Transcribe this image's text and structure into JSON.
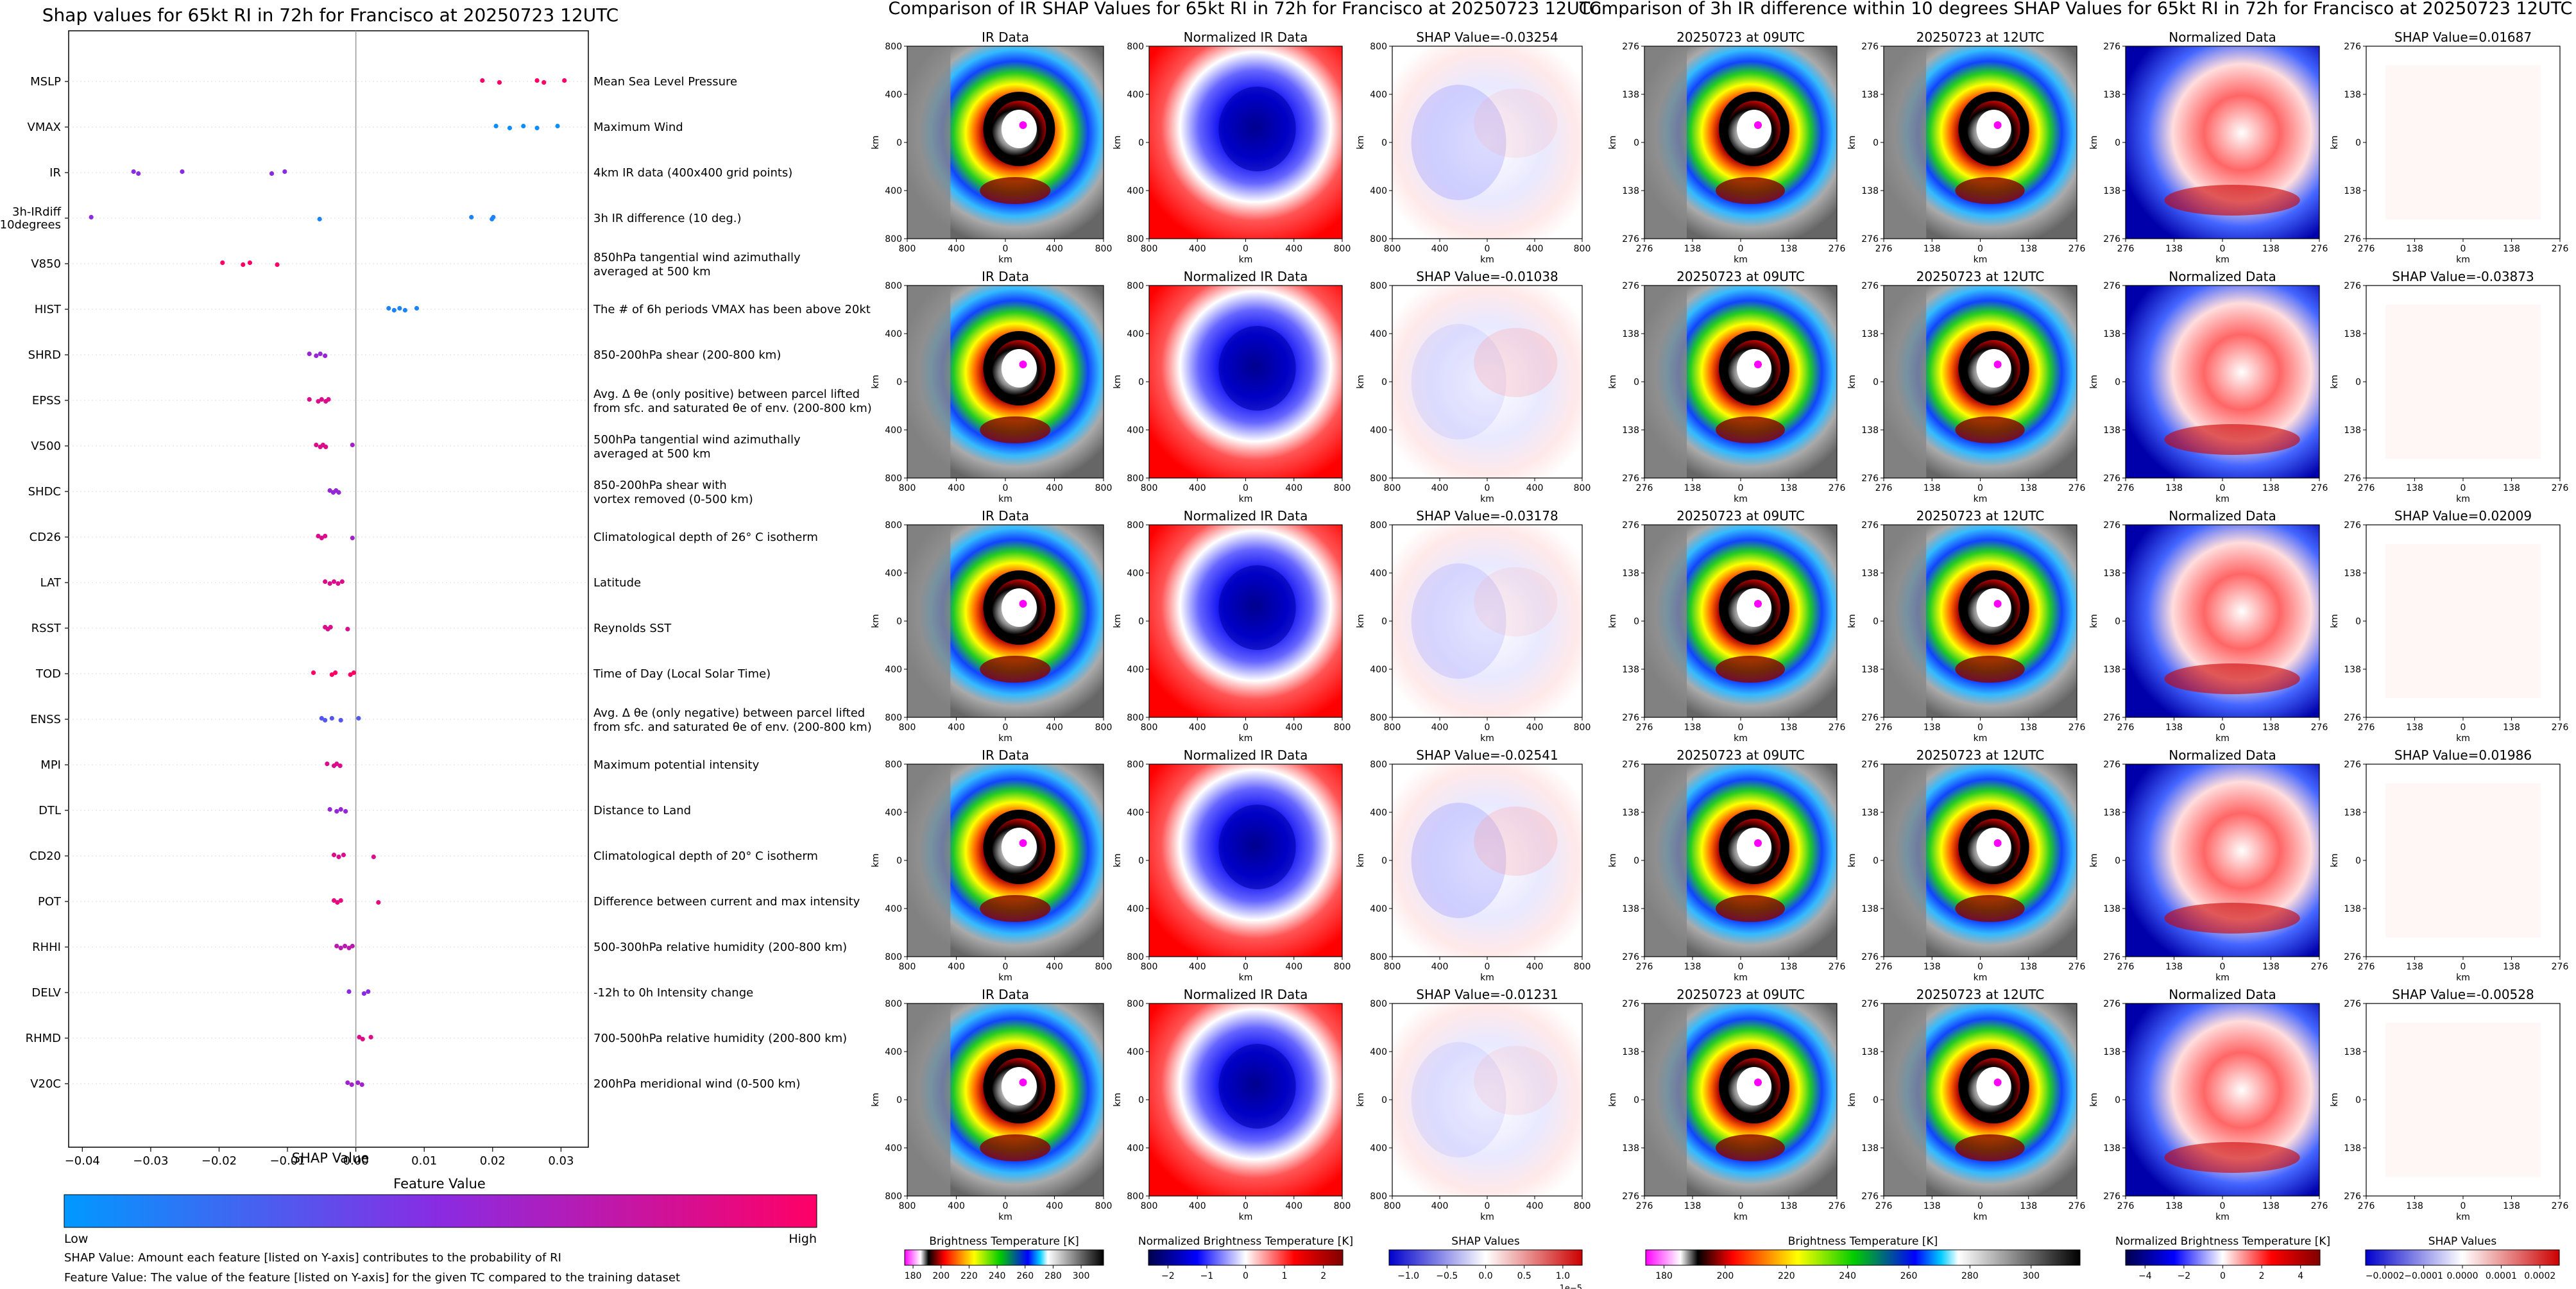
{
  "shap_panel": {
    "title": "Shap values for 65kt RI in 72h for Francisco at 20250723 12UTC",
    "xlabel": "SHAP Value",
    "colorbar_title": "Feature Value",
    "colorbar_low": "Low",
    "colorbar_high": "High",
    "footnote_1": "SHAP Value: Amount each feature [listed on Y-axis] contributes to the probability of RI",
    "footnote_2": "Feature Value: The value of the feature [listed on Y-axis] for the given TC compared to the training dataset"
  },
  "ir_panel": {
    "title": "Comparison of IR SHAP Values for 65kt RI in 72h for Francisco at 20250723 12UTC",
    "col_titles": [
      "IR Data",
      "Normalized IR Data"
    ],
    "shap_titles": [
      "SHAP Value=-0.03254",
      "SHAP Value=-0.01038",
      "SHAP Value=-0.03178",
      "SHAP Value=-0.02541",
      "SHAP Value=-0.01231"
    ],
    "axis_unit": "km",
    "ticks_x": [
      "800",
      "400",
      "0",
      "400",
      "800"
    ],
    "ticks_y": [
      "800",
      "400",
      "0",
      "400",
      "800"
    ],
    "cbar_1": {
      "label": "Brightness Temperature [K]",
      "ticks": [
        "180",
        "200",
        "220",
        "240",
        "260",
        "280",
        "300"
      ]
    },
    "cbar_2": {
      "label": "Normalized Brightness Temperature [K]",
      "ticks": [
        "−2",
        "−1",
        "0",
        "1",
        "2"
      ]
    },
    "cbar_3": {
      "label": "SHAP Values",
      "ticks": [
        "−1.0",
        "−0.5",
        "0.0",
        "0.5",
        "1.0"
      ],
      "exponent": "1e−5"
    }
  },
  "diff_panel": {
    "title": "Comparison of 3h IR difference within 10 degrees SHAP Values for 65kt RI in 72h for Francisco at 20250723 12UTC",
    "col_titles": [
      "20250723 at 09UTC",
      "20250723 at 12UTC",
      "Normalized Data"
    ],
    "shap_titles": [
      "SHAP Value=0.01687",
      "SHAP Value=-0.03873",
      "SHAP Value=0.02009",
      "SHAP Value=0.01986",
      "SHAP Value=-0.00528"
    ],
    "axis_unit": "km",
    "ticks_x": [
      "276",
      "138",
      "0",
      "138",
      "276"
    ],
    "ticks_y": [
      "276",
      "138",
      "0",
      "138",
      "276"
    ],
    "cbar_1": {
      "label": "Brightness Temperature [K]",
      "ticks": [
        "180",
        "200",
        "220",
        "240",
        "260",
        "280",
        "300"
      ]
    },
    "cbar_2": {
      "label": "Normalized Brightness Temperature [K]",
      "ticks": [
        "−4",
        "−2",
        "0",
        "2",
        "4"
      ]
    },
    "cbar_3": {
      "label": "SHAP Values",
      "ticks": [
        "−0.0002",
        "−0.0001",
        "0.0000",
        "0.0001",
        "0.0002"
      ]
    }
  },
  "colors": {
    "low": "#1e90ff",
    "mid": "#8a2be2",
    "high": "#ff0066",
    "zero_line": "#999999"
  },
  "chart_data": {
    "type": "scatter",
    "title": "Shap values for 65kt RI in 72h for Francisco at 20250723 12UTC",
    "xlabel": "SHAP Value",
    "xlim": [
      -0.042,
      0.034
    ],
    "xticks": [
      "−0.04",
      "−0.03",
      "−0.02",
      "−0.01",
      "0.00",
      "0.01",
      "0.02",
      "0.03"
    ],
    "xtick_values": [
      -0.04,
      -0.03,
      -0.02,
      -0.01,
      0.0,
      0.01,
      0.02,
      0.03
    ],
    "colorbar": {
      "label": "Feature Value",
      "low": "Low",
      "high": "High"
    },
    "features": [
      {
        "name": "MSLP",
        "desc": [
          "Mean Sea Level Pressure"
        ],
        "points": [
          [
            0.0185,
            1
          ],
          [
            0.021,
            1
          ],
          [
            0.0265,
            1
          ],
          [
            0.0275,
            1
          ],
          [
            0.0305,
            1
          ]
        ]
      },
      {
        "name": "VMAX",
        "desc": [
          "Maximum Wind"
        ],
        "points": [
          [
            0.0205,
            0.05
          ],
          [
            0.0225,
            0.05
          ],
          [
            0.0245,
            0.05
          ],
          [
            0.0265,
            0.05
          ],
          [
            0.0295,
            0.05
          ]
        ]
      },
      {
        "name": "IR",
        "desc": [
          "4km IR data (400x400 grid points)"
        ],
        "points": [
          [
            -0.0325,
            0.5
          ],
          [
            -0.0318,
            0.5
          ],
          [
            -0.0254,
            0.5
          ],
          [
            -0.0123,
            0.5
          ],
          [
            -0.0104,
            0.5
          ]
        ]
      },
      {
        "name": "3h-IRdiff 10degrees",
        "desc": [
          "3h IR difference (10 deg.)"
        ],
        "points": [
          [
            -0.0387,
            0.5
          ],
          [
            -0.0053,
            0.1
          ],
          [
            0.0169,
            0.1
          ],
          [
            0.0199,
            0.1
          ],
          [
            0.0201,
            0.1
          ]
        ]
      },
      {
        "name": "V850",
        "desc": [
          "850hPa tangential wind azimuthally",
          "averaged at 500 km"
        ],
        "points": [
          [
            -0.0195,
            1
          ],
          [
            -0.0165,
            1
          ],
          [
            -0.0155,
            1
          ],
          [
            -0.0115,
            1
          ]
        ]
      },
      {
        "name": "HIST",
        "desc": [
          "The # of 6h periods VMAX has been above 20kt"
        ],
        "points": [
          [
            0.0048,
            0.1
          ],
          [
            0.0056,
            0.1
          ],
          [
            0.0064,
            0.1
          ],
          [
            0.0072,
            0.1
          ],
          [
            0.0089,
            0.1
          ]
        ]
      },
      {
        "name": "SHRD",
        "desc": [
          "850-200hPa shear (200-800 km)"
        ],
        "points": [
          [
            -0.0068,
            0.55
          ],
          [
            -0.0058,
            0.55
          ],
          [
            -0.0052,
            0.55
          ],
          [
            -0.0045,
            0.55
          ]
        ]
      },
      {
        "name": "EPSS",
        "desc": [
          "Avg. Δ θe (only positive) between parcel lifted",
          "from sfc. and saturated θe of env. (200-800 km)"
        ],
        "points": [
          [
            -0.0068,
            0.85
          ],
          [
            -0.0055,
            0.85
          ],
          [
            -0.005,
            0.85
          ],
          [
            -0.0044,
            0.85
          ],
          [
            -0.004,
            0.85
          ]
        ]
      },
      {
        "name": "V500",
        "desc": [
          "500hPa tangential wind azimuthally",
          "averaged at 500 km"
        ],
        "points": [
          [
            -0.0058,
            0.85
          ],
          [
            -0.0052,
            0.85
          ],
          [
            -0.0048,
            0.85
          ],
          [
            -0.0044,
            0.85
          ],
          [
            -0.0005,
            0.6
          ]
        ]
      },
      {
        "name": "SHDC",
        "desc": [
          "850-200hPa shear with",
          "vortex removed (0-500 km)"
        ],
        "points": [
          [
            -0.0038,
            0.55
          ],
          [
            -0.0033,
            0.55
          ],
          [
            -0.0029,
            0.55
          ],
          [
            -0.0025,
            0.55
          ]
        ]
      },
      {
        "name": "CD26",
        "desc": [
          "Climatological depth of 26° C isotherm"
        ],
        "points": [
          [
            -0.0055,
            0.85
          ],
          [
            -0.005,
            0.85
          ],
          [
            -0.0045,
            0.85
          ],
          [
            -0.0005,
            0.6
          ]
        ]
      },
      {
        "name": "LAT",
        "desc": [
          "Latitude"
        ],
        "points": [
          [
            -0.0045,
            0.85
          ],
          [
            -0.0038,
            0.85
          ],
          [
            -0.0032,
            0.85
          ],
          [
            -0.0026,
            0.85
          ],
          [
            -0.002,
            0.85
          ]
        ]
      },
      {
        "name": "RSST",
        "desc": [
          "Reynolds SST"
        ],
        "points": [
          [
            -0.0045,
            0.85
          ],
          [
            -0.0041,
            0.85
          ],
          [
            -0.0037,
            0.85
          ],
          [
            -0.0012,
            0.85
          ]
        ]
      },
      {
        "name": "TOD",
        "desc": [
          "Time of Day (Local Solar Time)"
        ],
        "points": [
          [
            -0.0062,
            1
          ],
          [
            -0.0035,
            1
          ],
          [
            -0.003,
            1
          ],
          [
            -0.0008,
            1
          ],
          [
            -0.0003,
            1
          ]
        ]
      },
      {
        "name": "ENSS",
        "desc": [
          "Avg. Δ θe (only negative) between parcel lifted",
          "from sfc. and saturated θe of env. (200-800 km)"
        ],
        "points": [
          [
            -0.005,
            0.3
          ],
          [
            -0.0045,
            0.3
          ],
          [
            -0.0035,
            0.3
          ],
          [
            -0.0022,
            0.3
          ],
          [
            0.0004,
            0.3
          ]
        ]
      },
      {
        "name": "MPI",
        "desc": [
          "Maximum potential intensity"
        ],
        "points": [
          [
            -0.0042,
            0.85
          ],
          [
            -0.0032,
            0.85
          ],
          [
            -0.0028,
            0.85
          ],
          [
            -0.0023,
            0.85
          ]
        ]
      },
      {
        "name": "DTL",
        "desc": [
          "Distance to Land"
        ],
        "points": [
          [
            -0.0038,
            0.55
          ],
          [
            -0.0028,
            0.55
          ],
          [
            -0.0022,
            0.55
          ],
          [
            -0.0015,
            0.55
          ]
        ]
      },
      {
        "name": "CD20",
        "desc": [
          "Climatological depth of 20° C isotherm"
        ],
        "points": [
          [
            -0.0032,
            0.85
          ],
          [
            -0.0025,
            0.85
          ],
          [
            -0.0018,
            0.85
          ],
          [
            0.0026,
            0.85
          ]
        ]
      },
      {
        "name": "POT",
        "desc": [
          "Difference between current and max intensity"
        ],
        "points": [
          [
            -0.0032,
            0.9
          ],
          [
            -0.0027,
            0.9
          ],
          [
            -0.0022,
            0.9
          ],
          [
            0.0033,
            0.9
          ]
        ]
      },
      {
        "name": "RHHI",
        "desc": [
          "500-300hPa relative humidity (200-800 km)"
        ],
        "points": [
          [
            -0.0028,
            0.7
          ],
          [
            -0.0022,
            0.7
          ],
          [
            -0.0016,
            0.7
          ],
          [
            -0.001,
            0.7
          ],
          [
            -0.0005,
            0.7
          ]
        ]
      },
      {
        "name": "DELV",
        "desc": [
          "-12h to 0h Intensity change"
        ],
        "points": [
          [
            -0.001,
            0.5
          ],
          [
            0.0012,
            0.5
          ],
          [
            0.0018,
            0.5
          ]
        ]
      },
      {
        "name": "RHMD",
        "desc": [
          "700-500hPa relative humidity (200-800 km)"
        ],
        "points": [
          [
            0.0005,
            0.85
          ],
          [
            0.001,
            0.85
          ],
          [
            0.0022,
            0.85
          ]
        ]
      },
      {
        "name": "V20C",
        "desc": [
          "200hPa meridional wind (0-500 km)"
        ],
        "points": [
          [
            -0.0012,
            0.6
          ],
          [
            -0.0006,
            0.6
          ],
          [
            0.0003,
            0.6
          ],
          [
            0.0009,
            0.6
          ]
        ]
      }
    ]
  }
}
